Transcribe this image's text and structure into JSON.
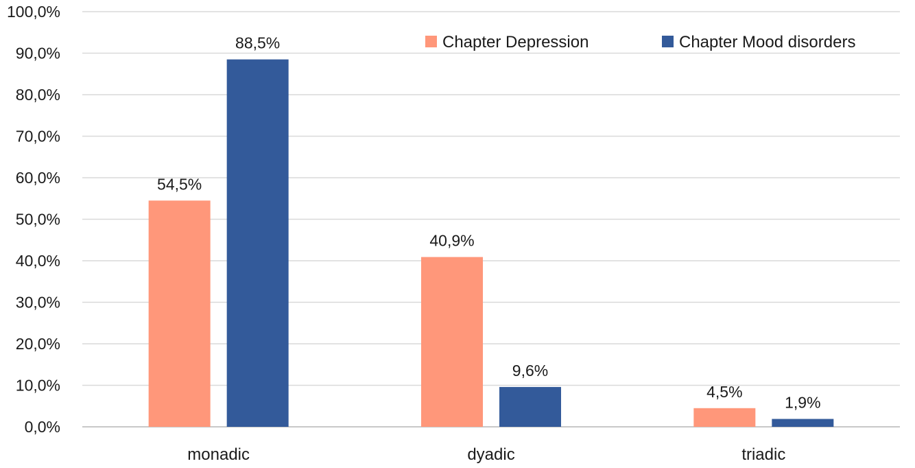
{
  "chart_data": {
    "type": "bar",
    "categories": [
      "monadic",
      "dyadic",
      "triadic"
    ],
    "series": [
      {
        "name": "Chapter Depression",
        "color": "#ff977a",
        "values": [
          54.5,
          40.9,
          4.5
        ],
        "labels": [
          "54,5%",
          "40,9%",
          "4,5%"
        ]
      },
      {
        "name": "Chapter Mood disorders",
        "color": "#335a9a",
        "values": [
          88.5,
          9.6,
          1.9
        ],
        "labels": [
          "88,5%",
          "9,6%",
          "1,9%"
        ]
      }
    ],
    "y_ticks": [
      0,
      10,
      20,
      30,
      40,
      50,
      60,
      70,
      80,
      90,
      100
    ],
    "y_tick_labels": [
      "0,0%",
      "10,0%",
      "20,0%",
      "30,0%",
      "40,0%",
      "50,0%",
      "60,0%",
      "70,0%",
      "80,0%",
      "90,0%",
      "100,0%"
    ],
    "ylim": [
      0,
      100
    ],
    "grid": true,
    "legend_position": "top-right",
    "title": "",
    "xlabel": "",
    "ylabel": ""
  }
}
